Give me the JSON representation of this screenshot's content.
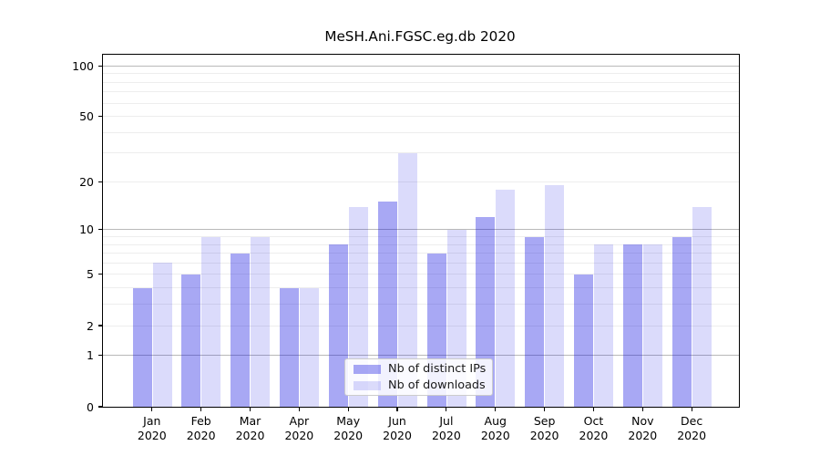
{
  "chart_data": {
    "type": "bar",
    "title": "MeSH.Ani.FGSC.eg.db 2020",
    "categories": [
      "Jan 2020",
      "Feb 2020",
      "Mar 2020",
      "Apr 2020",
      "May 2020",
      "Jun 2020",
      "Jul 2020",
      "Aug 2020",
      "Sep 2020",
      "Oct 2020",
      "Nov 2020",
      "Dec 2020"
    ],
    "series": [
      {
        "name": "Nb of distinct IPs",
        "color": "rgba(0,0,224,0.34)",
        "values": [
          4,
          5,
          7,
          4,
          8,
          15,
          7,
          12,
          9,
          5,
          8,
          9
        ]
      },
      {
        "name": "Nb of downloads",
        "color": "rgba(0,0,224,0.14)",
        "values": [
          6,
          9,
          9,
          4,
          14,
          30,
          10,
          18,
          19,
          8,
          8,
          14
        ]
      }
    ],
    "yscale": "log1p",
    "ylim": [
      0,
      115
    ],
    "yticks_labeled": [
      0,
      1,
      2,
      5,
      10,
      20,
      50,
      100
    ],
    "grid_major": [
      1,
      10,
      100
    ],
    "grid_minor": [
      2,
      3,
      4,
      5,
      6,
      7,
      8,
      9,
      20,
      30,
      40,
      50,
      60,
      70,
      80,
      90
    ],
    "legend_position": "lower center",
    "colors": {
      "bar_dark_hex": "#a9a9f5",
      "bar_light_hex": "#dcdcfb",
      "major_grid": "#b9b9b9",
      "minor_grid": "#ededed",
      "axis": "#000000"
    }
  }
}
